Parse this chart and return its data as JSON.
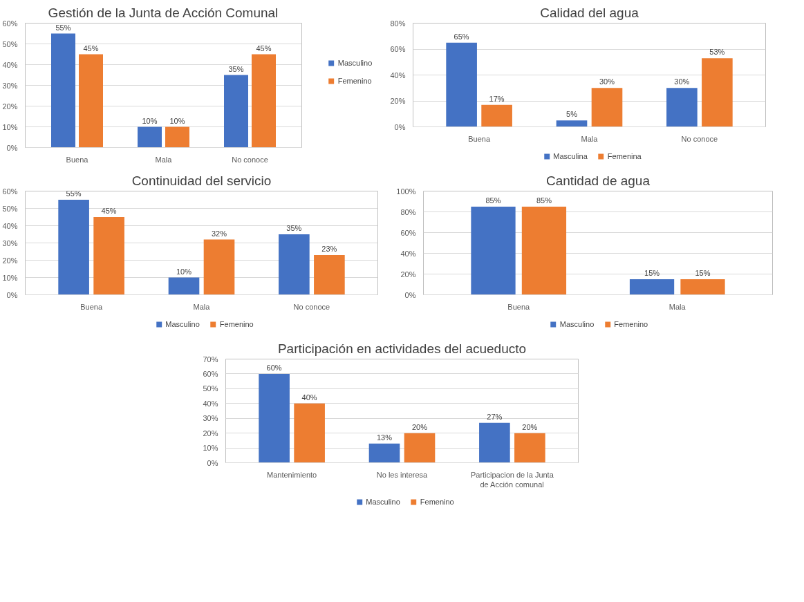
{
  "chart_data": [
    {
      "type": "bar",
      "title": "Gestión de la Junta de Acción Comunal",
      "categories": [
        "Buena",
        "Mala",
        "No conoce"
      ],
      "series": [
        {
          "name": "Masculino",
          "color": "#4472c4",
          "values": [
            55,
            10,
            35
          ],
          "value_labels": [
            "55%",
            "10%",
            "35%"
          ]
        },
        {
          "name": "Femenino",
          "color": "#ed7d31",
          "values": [
            45,
            10,
            45
          ],
          "value_labels": [
            "45%",
            "10%",
            "45%"
          ]
        }
      ],
      "ylim": [
        0,
        60
      ],
      "yticks": [
        {
          "value": 0,
          "label": "0%"
        },
        {
          "value": 10,
          "label": "10%"
        },
        {
          "value": 20,
          "label": "20%"
        },
        {
          "value": 30,
          "label": "30%"
        },
        {
          "value": 40,
          "label": "40%"
        },
        {
          "value": 50,
          "label": "50%"
        },
        {
          "value": 60,
          "label": "60%"
        }
      ],
      "grid": "y",
      "legend": "right"
    },
    {
      "type": "bar",
      "title": "Calidad del agua",
      "categories": [
        "Buena",
        "Mala",
        "No conoce"
      ],
      "series": [
        {
          "name": "Masculina",
          "color": "#4472c4",
          "values": [
            65,
            5,
            30
          ],
          "value_labels": [
            "65%",
            "5%",
            "30%"
          ]
        },
        {
          "name": "Femenina",
          "color": "#ed7d31",
          "values": [
            17,
            30,
            53
          ],
          "value_labels": [
            "17%",
            "30%",
            "53%"
          ]
        }
      ],
      "ylim": [
        0,
        80
      ],
      "yticks": [
        {
          "value": 0,
          "label": "0%"
        },
        {
          "value": 20,
          "label": "20%"
        },
        {
          "value": 40,
          "label": "40%"
        },
        {
          "value": 60,
          "label": "60%"
        },
        {
          "value": 80,
          "label": "80%"
        }
      ],
      "grid": "y",
      "legend": "bottom"
    },
    {
      "type": "bar",
      "title": "Continuidad del servicio",
      "categories": [
        "Buena",
        "Mala",
        "No conoce"
      ],
      "series": [
        {
          "name": "Masculino",
          "color": "#4472c4",
          "values": [
            55,
            10,
            35
          ],
          "value_labels": [
            "55%",
            "10%",
            "35%"
          ]
        },
        {
          "name": "Femenino",
          "color": "#ed7d31",
          "values": [
            45,
            32,
            23
          ],
          "value_labels": [
            "45%",
            "32%",
            "23%"
          ]
        }
      ],
      "ylim": [
        0,
        60
      ],
      "yticks": [
        {
          "value": 0,
          "label": "0%"
        },
        {
          "value": 10,
          "label": "10%"
        },
        {
          "value": 20,
          "label": "20%"
        },
        {
          "value": 30,
          "label": "30%"
        },
        {
          "value": 40,
          "label": "40%"
        },
        {
          "value": 50,
          "label": "50%"
        },
        {
          "value": 60,
          "label": "60%"
        }
      ],
      "grid": "y",
      "legend": "bottom"
    },
    {
      "type": "bar",
      "title": "Cantidad de agua",
      "categories": [
        "Buena",
        "Mala"
      ],
      "series": [
        {
          "name": "Masculino",
          "color": "#4472c4",
          "values": [
            85,
            15
          ],
          "value_labels": [
            "85%",
            "15%"
          ]
        },
        {
          "name": "Femenino",
          "color": "#ed7d31",
          "values": [
            85,
            15
          ],
          "value_labels": [
            "85%",
            "15%"
          ]
        }
      ],
      "ylim": [
        0,
        100
      ],
      "yticks": [
        {
          "value": 0,
          "label": "0%"
        },
        {
          "value": 20,
          "label": "20%"
        },
        {
          "value": 40,
          "label": "40%"
        },
        {
          "value": 60,
          "label": "60%"
        },
        {
          "value": 80,
          "label": "80%"
        },
        {
          "value": 100,
          "label": "100%"
        }
      ],
      "grid": "y",
      "legend": "bottom"
    },
    {
      "type": "bar",
      "title": "Participación en actividades del acueducto",
      "categories": [
        "Mantenimiento",
        "No les interesa",
        "Participacion de la Junta de Acción comunal"
      ],
      "series": [
        {
          "name": "Masculino",
          "color": "#4472c4",
          "values": [
            60,
            13,
            27
          ],
          "value_labels": [
            "60%",
            "13%",
            "27%"
          ]
        },
        {
          "name": "Femenino",
          "color": "#ed7d31",
          "values": [
            40,
            20,
            20
          ],
          "value_labels": [
            "40%",
            "20%",
            "20%"
          ]
        }
      ],
      "ylim": [
        0,
        70
      ],
      "yticks": [
        {
          "value": 0,
          "label": "0%"
        },
        {
          "value": 10,
          "label": "10%"
        },
        {
          "value": 20,
          "label": "20%"
        },
        {
          "value": 30,
          "label": "30%"
        },
        {
          "value": 40,
          "label": "40%"
        },
        {
          "value": 50,
          "label": "50%"
        },
        {
          "value": 60,
          "label": "60%"
        },
        {
          "value": 70,
          "label": "70%"
        }
      ],
      "grid": "y",
      "legend": "bottom"
    }
  ]
}
